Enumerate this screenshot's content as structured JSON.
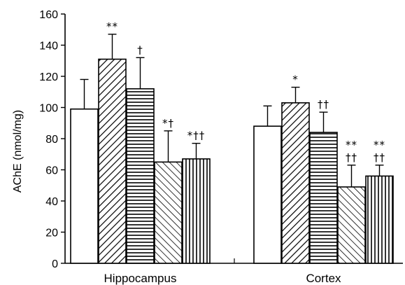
{
  "chart_data": {
    "type": "bar",
    "title": "",
    "xlabel": "",
    "ylabel": "AChE (nmol/mg)",
    "ylim": [
      0,
      160
    ],
    "yticks": [
      0,
      20,
      40,
      60,
      80,
      100,
      120,
      140,
      160
    ],
    "grid": false,
    "categories": [
      "Hippocampus",
      "Cortex"
    ],
    "series": [
      {
        "pattern": "open",
        "values": [
          99,
          88
        ],
        "errors": [
          19,
          13
        ],
        "annotations": [
          "",
          ""
        ]
      },
      {
        "pattern": "diagonal",
        "values": [
          131,
          103
        ],
        "errors": [
          16,
          10
        ],
        "annotations": [
          "**",
          "*"
        ]
      },
      {
        "pattern": "horizontal",
        "values": [
          112,
          84
        ],
        "errors": [
          20,
          13
        ],
        "annotations": [
          "†",
          "††"
        ]
      },
      {
        "pattern": "backslash",
        "values": [
          65,
          49
        ],
        "errors": [
          20,
          14
        ],
        "annotations": [
          "*†",
          "**\n††"
        ]
      },
      {
        "pattern": "vertical",
        "values": [
          67,
          56
        ],
        "errors": [
          10,
          7
        ],
        "annotations": [
          "*††",
          "**\n††"
        ]
      }
    ]
  }
}
